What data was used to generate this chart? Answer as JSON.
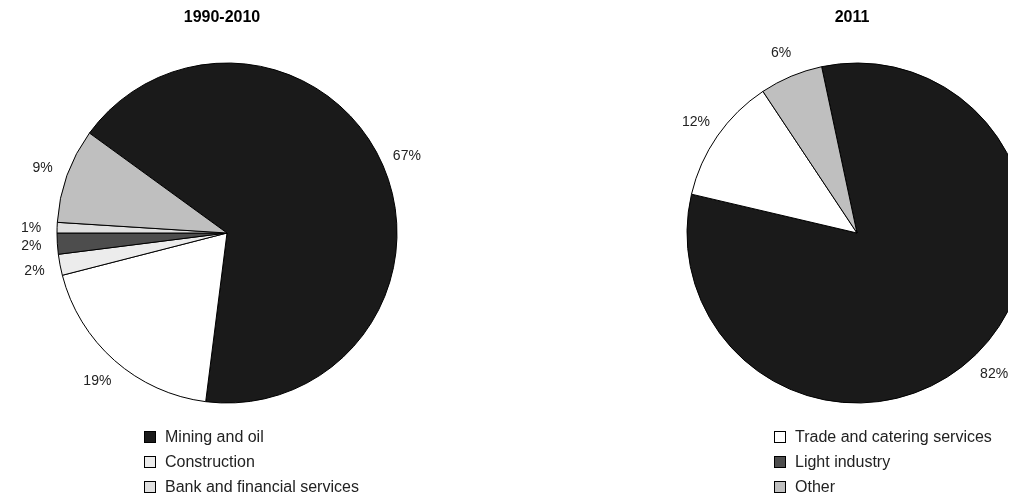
{
  "chart_data": [
    {
      "type": "pie",
      "title": "1990-2010",
      "categories": [
        "Mining and oil",
        "Trade and catering services",
        "Construction",
        "Light industry",
        "Bank and financial services",
        "Other"
      ],
      "values": [
        67,
        19,
        2,
        2,
        1,
        9
      ],
      "value_labels": [
        "67%",
        "19%",
        "2%",
        "2%",
        "1%",
        "9%"
      ],
      "colors": [
        "#1a1a1a",
        "#ffffff",
        "#ececec",
        "#4d4d4d",
        "#e0e0e0",
        "#bfbfbf"
      ],
      "legend": "bottom"
    },
    {
      "type": "pie",
      "title": "2011",
      "categories": [
        null,
        null,
        null
      ],
      "values": [
        82,
        12,
        6
      ],
      "value_labels": [
        "82%",
        "12%",
        "6%"
      ],
      "colors": [
        "#1a1a1a",
        "#ffffff",
        "#bfbfbf"
      ]
    }
  ]
}
